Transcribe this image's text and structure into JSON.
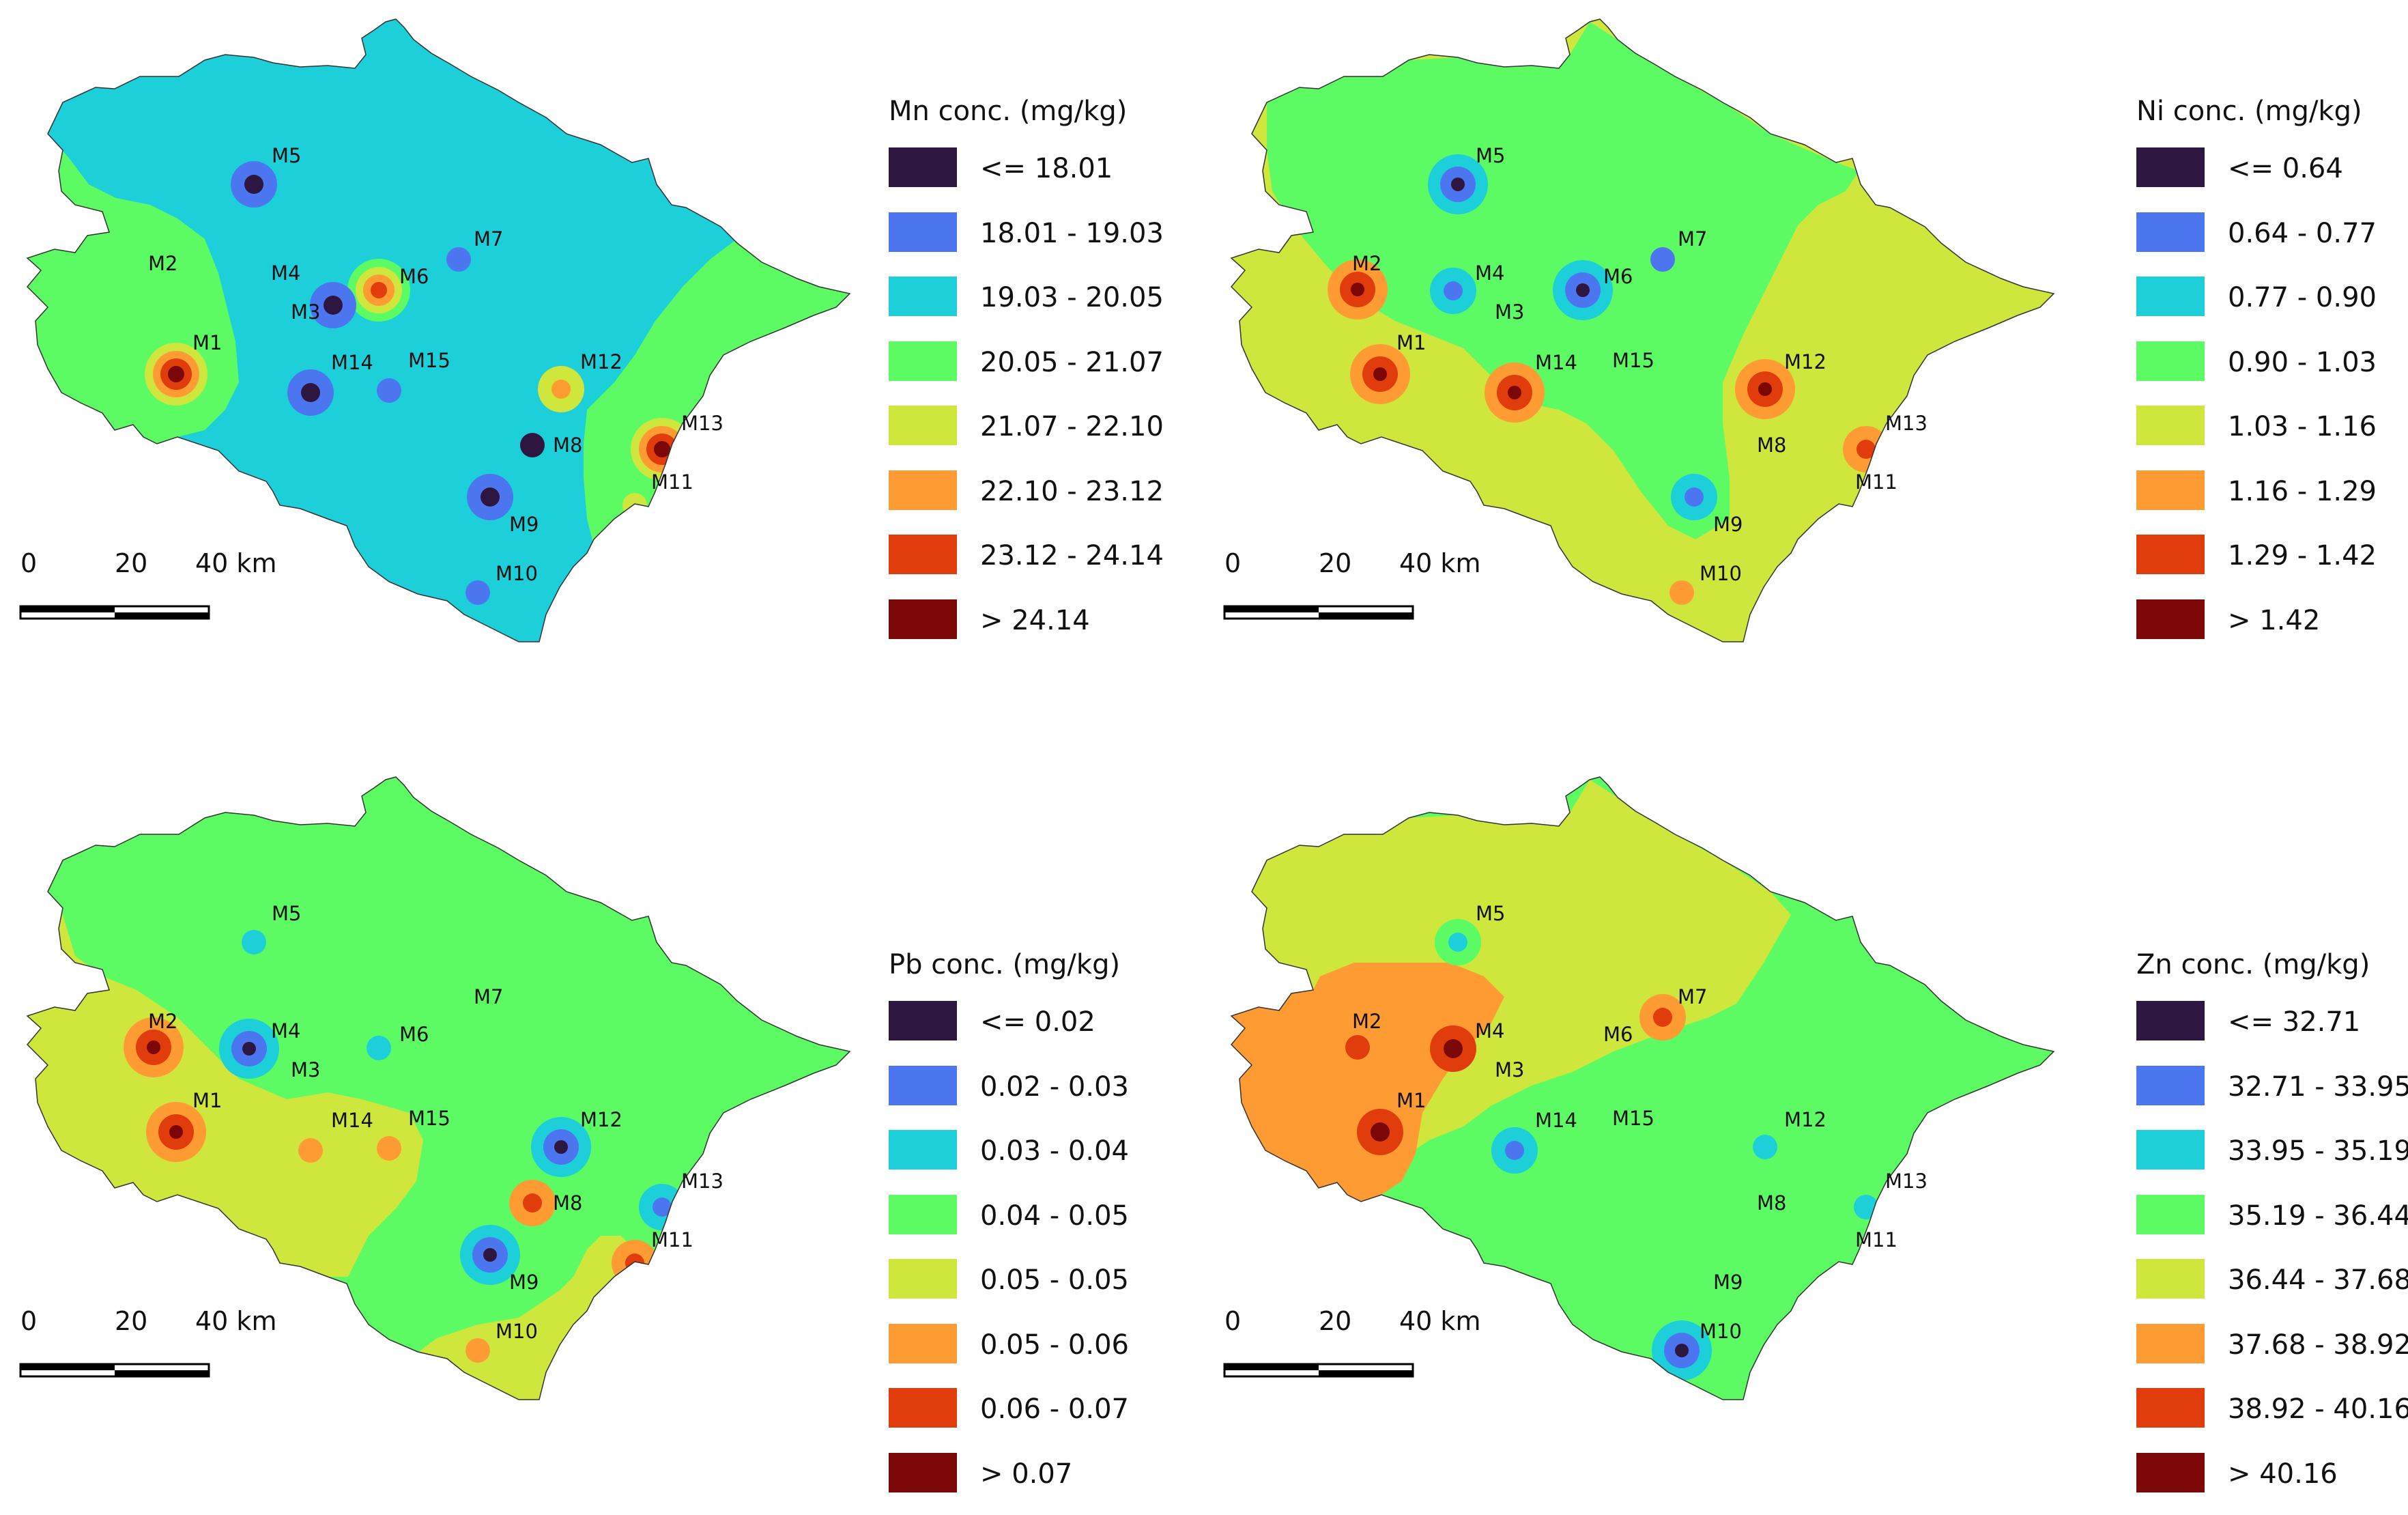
{
  "colors": {
    "class0": "#2d1640",
    "class1": "#4c76f0",
    "class2": "#1ccfd8",
    "class3": "#5cfb63",
    "class4": "#cfe63c",
    "class5": "#ff9b33",
    "class6": "#e03c0c",
    "class7": "#7c0707"
  },
  "scalebar": {
    "labels": [
      "0",
      "20",
      "40 km"
    ]
  },
  "sample_labels": [
    "M1",
    "M2",
    "M3",
    "M4",
    "M5",
    "M6",
    "M7",
    "M8",
    "M9",
    "M10",
    "M11",
    "M12",
    "M13",
    "M14",
    "M15"
  ],
  "panels": [
    {
      "id": "mn",
      "title": "Mn conc. (mg/kg)",
      "legend": [
        "<= 18.01",
        "18.01 - 19.03",
        "19.03 - 20.05",
        "20.05 - 21.07",
        "21.07 - 22.10",
        "22.10 - 23.12",
        "23.12 - 24.14",
        "> 24.14"
      ],
      "base_class": 2,
      "regions": [
        {
          "shape": "west",
          "class": 3
        },
        {
          "shape": "east",
          "class": 3
        }
      ],
      "hotspots": [
        {
          "site": "M1",
          "classes": [
            4,
            5,
            6,
            7
          ]
        },
        {
          "site": "M5",
          "classes": [
            1,
            0
          ]
        },
        {
          "site": "M6",
          "classes": [
            3,
            4,
            5,
            6
          ]
        },
        {
          "site": "M3",
          "classes": [
            1,
            0
          ]
        },
        {
          "site": "M7",
          "classes": [
            1
          ]
        },
        {
          "site": "M14",
          "classes": [
            1,
            0
          ]
        },
        {
          "site": "M15",
          "classes": [
            1
          ]
        },
        {
          "site": "M9",
          "classes": [
            1,
            0
          ]
        },
        {
          "site": "M8",
          "classes": [
            0
          ]
        },
        {
          "site": "M12",
          "classes": [
            4,
            5
          ]
        },
        {
          "site": "M13",
          "classes": [
            4,
            5,
            6,
            7
          ]
        },
        {
          "site": "M10",
          "classes": [
            1
          ]
        },
        {
          "site": "M11",
          "classes": [
            4
          ]
        }
      ]
    },
    {
      "id": "ni",
      "title": "Ni conc. (mg/kg)",
      "legend": [
        "<= 0.64",
        "0.64 - 0.77",
        "0.77 - 0.90",
        "0.90 - 1.03",
        "1.03 - 1.16",
        "1.16 - 1.29",
        "1.29 - 1.42",
        "> 1.42"
      ],
      "base_class": 4,
      "regions": [
        {
          "shape": "north",
          "class": 3
        }
      ],
      "hotspots": [
        {
          "site": "M1",
          "classes": [
            5,
            6,
            7
          ]
        },
        {
          "site": "M2",
          "classes": [
            5,
            6,
            7
          ]
        },
        {
          "site": "M5",
          "classes": [
            2,
            1,
            0
          ]
        },
        {
          "site": "M4",
          "classes": [
            2,
            1
          ]
        },
        {
          "site": "M6",
          "classes": [
            2,
            1,
            0
          ]
        },
        {
          "site": "M7",
          "classes": [
            1
          ]
        },
        {
          "site": "M14",
          "classes": [
            5,
            6,
            7
          ]
        },
        {
          "site": "M12",
          "classes": [
            5,
            6,
            7
          ]
        },
        {
          "site": "M13",
          "classes": [
            5,
            6
          ]
        },
        {
          "site": "M9",
          "classes": [
            2,
            1
          ]
        },
        {
          "site": "M10",
          "classes": [
            5
          ]
        }
      ]
    },
    {
      "id": "pb",
      "title": "Pb conc. (mg/kg)",
      "legend": [
        "<= 0.02",
        "0.02 - 0.03",
        "0.03 - 0.04",
        "0.04 - 0.05",
        "0.05 - 0.05",
        "0.05 - 0.06",
        "0.06 - 0.07",
        "> 0.07"
      ],
      "base_class": 3,
      "regions": [
        {
          "shape": "sw",
          "class": 4
        },
        {
          "shape": "se-lobe",
          "class": 4
        }
      ],
      "hotspots": [
        {
          "site": "M1",
          "classes": [
            5,
            6,
            7
          ]
        },
        {
          "site": "M2",
          "classes": [
            5,
            6,
            7
          ]
        },
        {
          "site": "M5",
          "classes": [
            2
          ]
        },
        {
          "site": "M4",
          "classes": [
            2,
            1,
            0
          ]
        },
        {
          "site": "M6",
          "classes": [
            2
          ]
        },
        {
          "site": "M14",
          "classes": [
            5
          ]
        },
        {
          "site": "M15",
          "classes": [
            5
          ]
        },
        {
          "site": "M12",
          "classes": [
            2,
            1,
            0
          ]
        },
        {
          "site": "M8",
          "classes": [
            5,
            6
          ]
        },
        {
          "site": "M9",
          "classes": [
            2,
            1,
            0
          ]
        },
        {
          "site": "M13",
          "classes": [
            2,
            1
          ]
        },
        {
          "site": "M11",
          "classes": [
            5,
            6
          ]
        },
        {
          "site": "M10",
          "classes": [
            5
          ]
        }
      ]
    },
    {
      "id": "zn",
      "title": "Zn conc. (mg/kg)",
      "legend": [
        "<= 32.71",
        "32.71 - 33.95",
        "33.95 - 35.19",
        "35.19 - 36.44",
        "36.44 - 37.68",
        "37.68 - 38.92",
        "38.92 - 40.16",
        "> 40.16"
      ],
      "base_class": 3,
      "regions": [
        {
          "shape": "nw",
          "class": 4
        },
        {
          "shape": "west-orange",
          "class": 5
        }
      ],
      "hotspots": [
        {
          "site": "M1",
          "classes": [
            6,
            7
          ]
        },
        {
          "site": "M2",
          "classes": [
            6
          ]
        },
        {
          "site": "M4",
          "classes": [
            6,
            7
          ]
        },
        {
          "site": "M5",
          "classes": [
            3,
            2
          ]
        },
        {
          "site": "M7",
          "classes": [
            5,
            6
          ]
        },
        {
          "site": "M14",
          "classes": [
            2,
            1
          ]
        },
        {
          "site": "M12",
          "classes": [
            2
          ]
        },
        {
          "site": "M13",
          "classes": [
            2
          ]
        },
        {
          "site": "M10",
          "classes": [
            2,
            1,
            0
          ]
        }
      ]
    }
  ]
}
